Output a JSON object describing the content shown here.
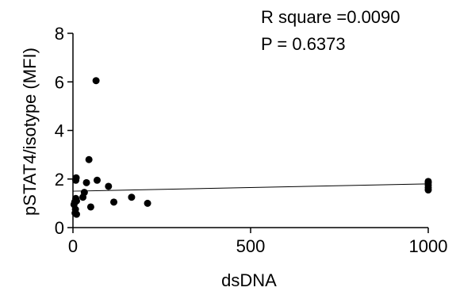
{
  "chart_data": {
    "type": "scatter",
    "xlabel": "dsDNA",
    "ylabel": "pSTAT4/isotype (MFI)",
    "xlim": [
      0,
      1000
    ],
    "ylim": [
      0,
      8
    ],
    "x_ticks": [
      0,
      500,
      1000
    ],
    "y_ticks": [
      0,
      2,
      4,
      6,
      8
    ],
    "grid": false,
    "annotations": [
      "R square =0.0090",
      "P = 0.6373"
    ],
    "regression_line": {
      "x": [
        0,
        1000
      ],
      "y": [
        1.5,
        1.8
      ]
    },
    "points": [
      {
        "x": 3,
        "y": 0.95
      },
      {
        "x": 5,
        "y": 1.05
      },
      {
        "x": 6,
        "y": 0.6
      },
      {
        "x": 7,
        "y": 0.75
      },
      {
        "x": 8,
        "y": 1.2
      },
      {
        "x": 8,
        "y": 1.95
      },
      {
        "x": 9,
        "y": 2.05
      },
      {
        "x": 10,
        "y": 0.55
      },
      {
        "x": 10,
        "y": 1.1
      },
      {
        "x": 28,
        "y": 1.25
      },
      {
        "x": 32,
        "y": 1.45
      },
      {
        "x": 38,
        "y": 1.85
      },
      {
        "x": 45,
        "y": 2.8
      },
      {
        "x": 50,
        "y": 0.85
      },
      {
        "x": 65,
        "y": 6.05
      },
      {
        "x": 68,
        "y": 1.95
      },
      {
        "x": 100,
        "y": 1.7
      },
      {
        "x": 115,
        "y": 1.05
      },
      {
        "x": 165,
        "y": 1.25
      },
      {
        "x": 210,
        "y": 1.0
      },
      {
        "x": 1000,
        "y": 1.55
      },
      {
        "x": 1000,
        "y": 1.65
      },
      {
        "x": 1000,
        "y": 1.75
      },
      {
        "x": 1000,
        "y": 1.85
      },
      {
        "x": 1000,
        "y": 1.9
      }
    ]
  }
}
